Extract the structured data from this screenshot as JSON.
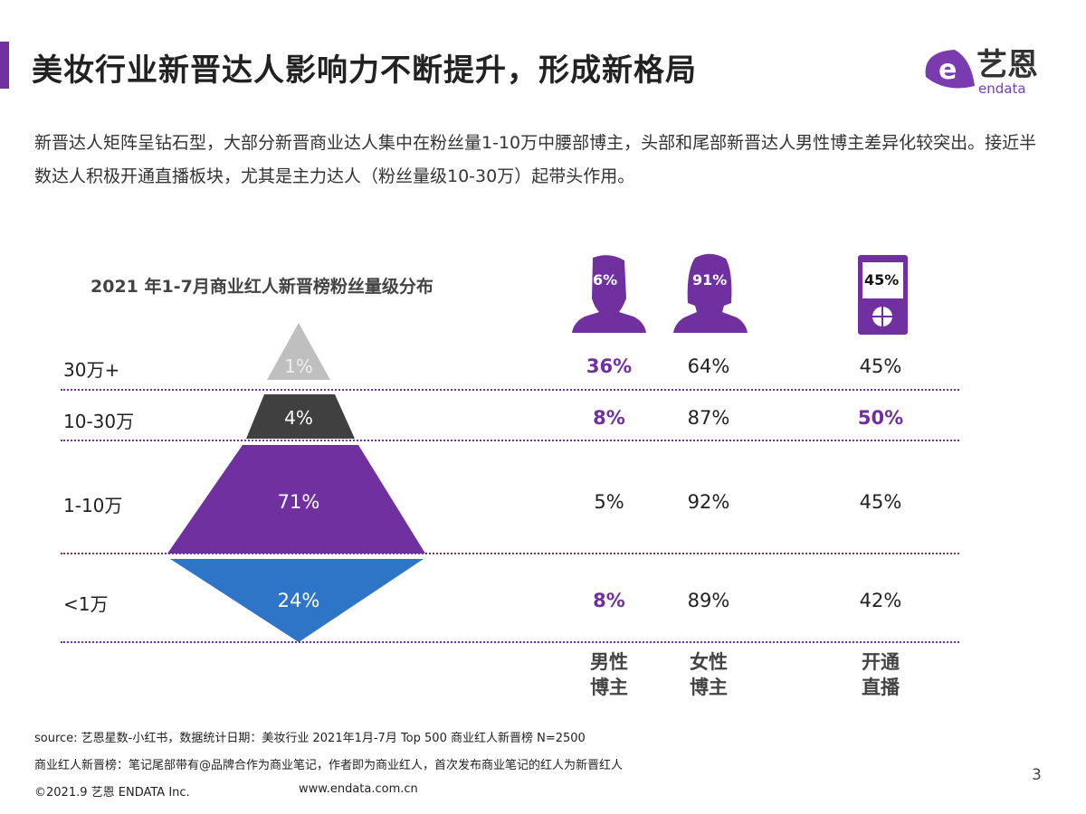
{
  "title": "美妆行业新晋达人影响力不断提升，形成新格局",
  "logo": {
    "cn": "艺恩",
    "en": "endata"
  },
  "intro": "新晋达人矩阵呈钻石型，大部分新晋商业达人集中在粉丝量1-10万中腰部博主，头部和尾部新晋达人男性博主差异化较突出。接近半数达人积极开通直播板块，尤其是主力达人（粉丝量级10-30万）起带头作用。",
  "chart_data": {
    "type": "table",
    "title": "2021 年1-7月商业红人新晋榜粉丝量级分布",
    "categories": [
      "30万+",
      "10-30万",
      "1-10万",
      "<1万"
    ],
    "pyramid_share": [
      "1%",
      "4%",
      "71%",
      "24%"
    ],
    "columns": [
      {
        "label": "男性博主",
        "icon": "male-avatar-icon",
        "icon_value": "6%",
        "values": [
          "36%",
          "8%",
          "5%",
          "8%"
        ],
        "highlight": [
          true,
          true,
          false,
          true
        ]
      },
      {
        "label": "女性博主",
        "icon": "female-avatar-icon",
        "icon_value": "91%",
        "values": [
          "64%",
          "87%",
          "92%",
          "89%"
        ],
        "highlight": [
          false,
          false,
          false,
          false
        ]
      },
      {
        "label": "开通直播",
        "icon": "phone-live-icon",
        "icon_value": "45%",
        "values": [
          "45%",
          "50%",
          "45%",
          "42%"
        ],
        "highlight": [
          false,
          true,
          false,
          false
        ]
      }
    ],
    "colors": {
      "accent": "#7030a0",
      "top": "#bfbfbf",
      "second": "#404040",
      "mid": "#7030a0",
      "bottom": "#2e75c8"
    }
  },
  "col_labels": [
    [
      "男性",
      "博主"
    ],
    [
      "女性",
      "博主"
    ],
    [
      "开通",
      "直播"
    ]
  ],
  "footer": {
    "source": "source: 艺恩星数-小红书，数据统计日期：美妆行业 2021年1月-7月 Top 500 商业红人新晋榜 N=2500",
    "note": "商业红人新晋榜：笔记尾部带有@品牌合作为商业笔记，作者即为商业红人，首次发布商业笔记的红人为新晋红人",
    "copyright": "©2021.9 艺恩 ENDATA Inc.",
    "url": "www.endata.com.cn",
    "page": "3"
  }
}
